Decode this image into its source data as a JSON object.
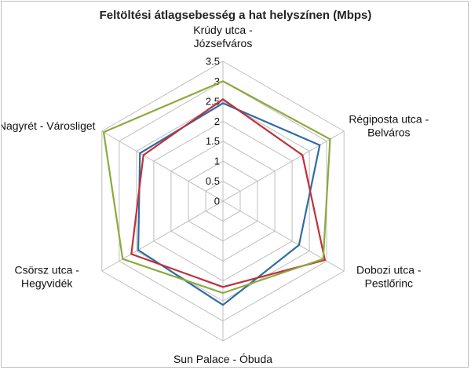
{
  "chart_data": {
    "type": "radar",
    "title": "Feltöltési átlagsebesség a hat helyszínen (Mbps)",
    "categories": [
      [
        "Krúdy utca -",
        "Józsefváros"
      ],
      [
        "Régiposta utca -",
        "Belváros"
      ],
      [
        "Dobozi utca -",
        "Pestlőrinc"
      ],
      [
        "Sun Palace - Óbuda"
      ],
      [
        "Csörsz utca -",
        "Hegyvidék"
      ],
      [
        "Nagyrét - Városliget"
      ]
    ],
    "ticks": [
      "0",
      "0.5",
      "1",
      "1.5",
      "2",
      "2.5",
      "3",
      "3.5"
    ],
    "rmin": 0,
    "rmax": 3.5,
    "series": [
      {
        "color": "#2e6ca4",
        "values": [
          2.45,
          2.8,
          2.2,
          2.6,
          2.45,
          2.4
        ]
      },
      {
        "color": "#c0303a",
        "values": [
          2.55,
          2.3,
          2.95,
          2.15,
          2.65,
          2.3
        ]
      },
      {
        "color": "#8aab3c",
        "values": [
          3.0,
          3.1,
          2.9,
          2.3,
          2.9,
          3.45
        ]
      }
    ],
    "grid_color": "#bfbfbf",
    "legend": "none"
  }
}
